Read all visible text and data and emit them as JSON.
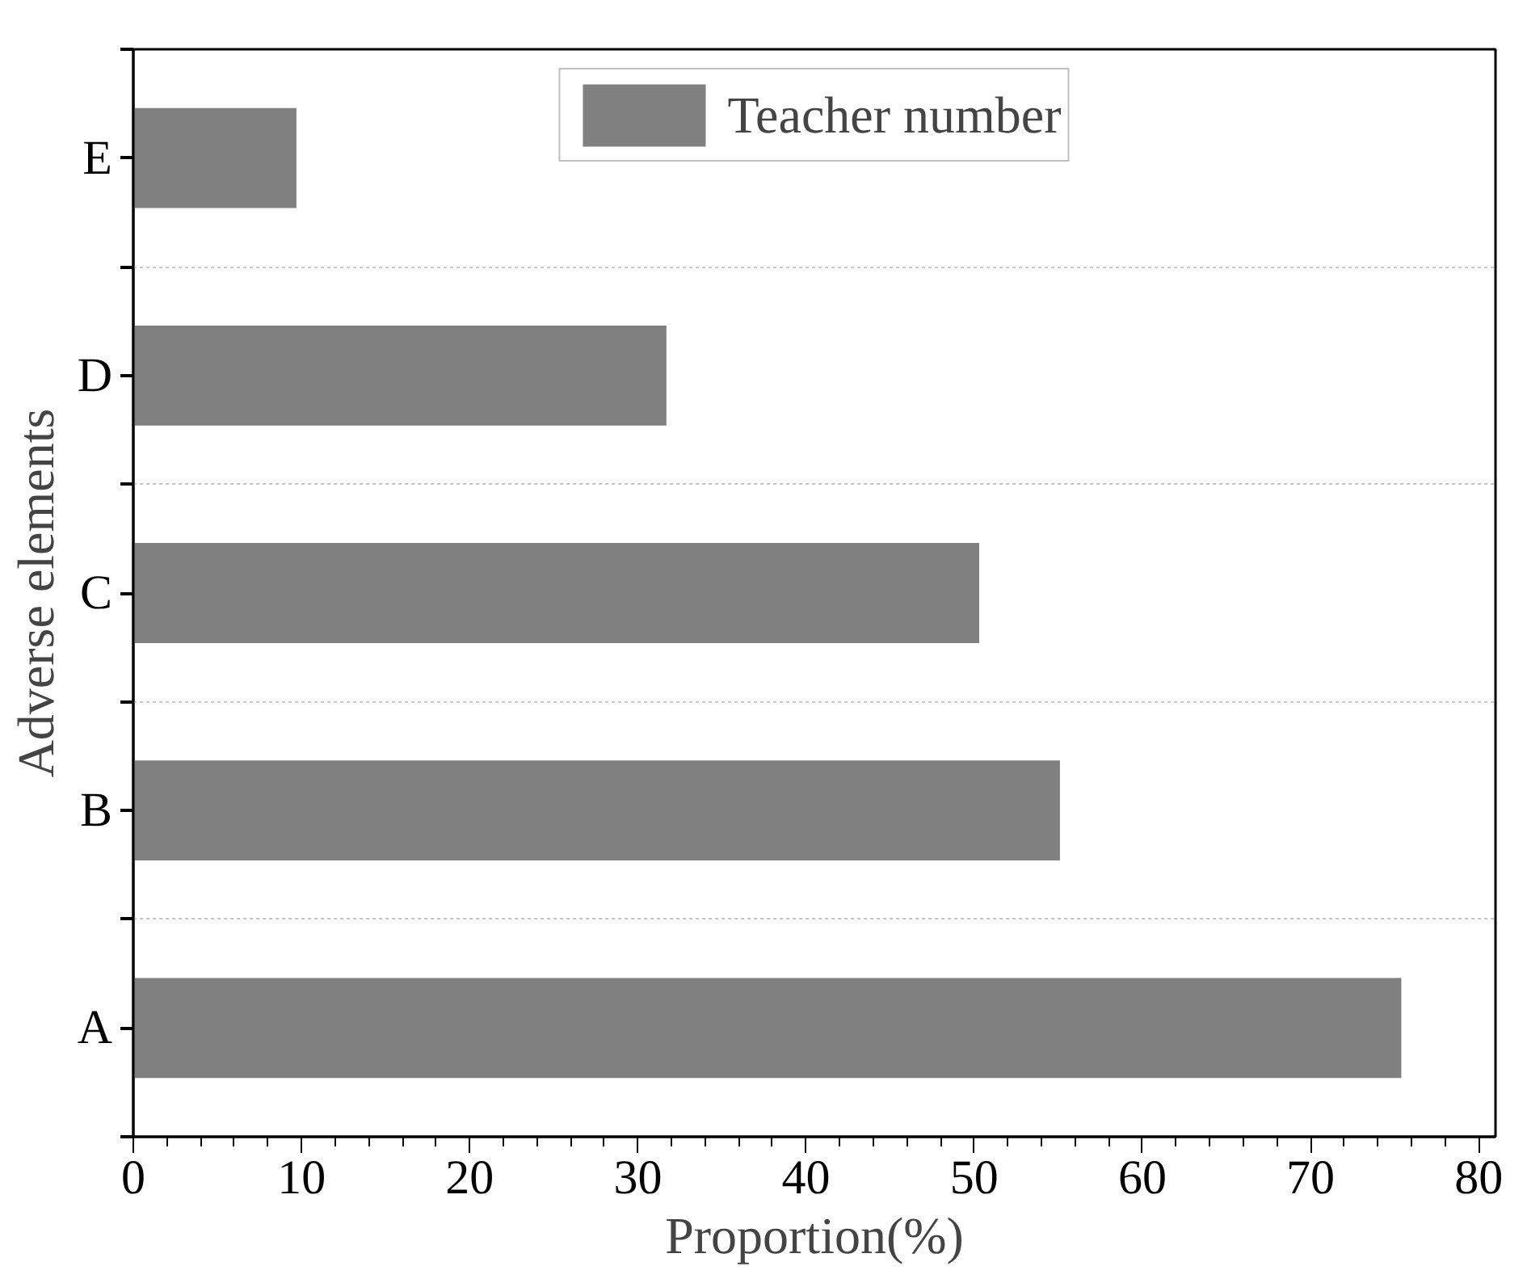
{
  "chart_data": {
    "type": "bar",
    "orientation": "horizontal",
    "xlabel": "Proportion(%)",
    "ylabel": "Adverse elements",
    "categories": [
      "E",
      "D",
      "C",
      "B",
      "A"
    ],
    "series": [
      {
        "name": "Teacher number",
        "color": "#808080",
        "values": [
          9.7,
          31.7,
          50.3,
          55.1,
          75.4
        ]
      }
    ],
    "xlim": [
      0,
      81
    ],
    "xticks": [
      0,
      10,
      20,
      30,
      40,
      50,
      60,
      70,
      80
    ],
    "grid": "y",
    "legend": "top"
  }
}
